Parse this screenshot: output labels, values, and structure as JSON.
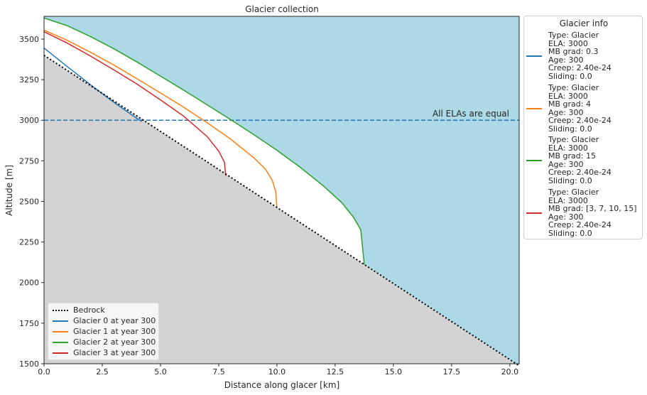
{
  "chart_data": {
    "type": "line",
    "title": "Glacier collection",
    "xlabel": "Distance along glacer [km]",
    "ylabel": "Altitude [m]",
    "xlim": [
      0,
      20.4
    ],
    "ylim": [
      1500,
      3640
    ],
    "xticks": [
      "0.0",
      "2.5",
      "5.0",
      "7.5",
      "10.0",
      "12.5",
      "15.0",
      "17.5",
      "20.0"
    ],
    "xtick_values": [
      0,
      2.5,
      5,
      7.5,
      10,
      12.5,
      15,
      17.5,
      20
    ],
    "yticks": [
      "1500",
      "1750",
      "2000",
      "2250",
      "2500",
      "2750",
      "3000",
      "3250",
      "3500"
    ],
    "ytick_values": [
      1500,
      1750,
      2000,
      2250,
      2500,
      2750,
      3000,
      3250,
      3500
    ],
    "bedrock": {
      "name": "Bedrock",
      "x": [
        0,
        20.4
      ],
      "y": [
        3400,
        1488
      ]
    },
    "ela": {
      "value": 3000,
      "annotation": "All ELAs are equal"
    },
    "series": [
      {
        "name": "Glacier 0 at year 300",
        "color": "#1f77b4",
        "x": [
          0,
          1,
          2,
          3,
          4,
          4.2
        ],
        "y": [
          3445,
          3330,
          3218,
          3110,
          3010,
          2993
        ]
      },
      {
        "name": "Glacier 1 at year 300",
        "color": "#ff7f0e",
        "x": [
          0,
          1,
          2,
          3,
          4,
          5,
          6,
          7,
          8,
          9,
          9.5,
          9.8,
          9.95,
          10.0
        ],
        "y": [
          3555,
          3492,
          3418,
          3340,
          3255,
          3168,
          3080,
          2985,
          2885,
          2770,
          2700,
          2630,
          2560,
          2462
        ]
      },
      {
        "name": "Glacier 2 at year 300",
        "color": "#2ca02c",
        "x": [
          0,
          1,
          2,
          3,
          4,
          5,
          6,
          7,
          8,
          9,
          10,
          11,
          12,
          12.8,
          13.3,
          13.6,
          13.75
        ],
        "y": [
          3630,
          3582,
          3515,
          3440,
          3358,
          3272,
          3185,
          3095,
          3005,
          2912,
          2815,
          2710,
          2595,
          2490,
          2400,
          2325,
          2110
        ]
      },
      {
        "name": "Glacier 3 at year 300",
        "color": "#d62728",
        "x": [
          0,
          1,
          2,
          3,
          4,
          5,
          6,
          7,
          7.5,
          7.75,
          7.8
        ],
        "y": [
          3545,
          3475,
          3395,
          3310,
          3222,
          3125,
          3025,
          2900,
          2810,
          2740,
          2658
        ]
      }
    ],
    "legend_inner": [
      "Bedrock",
      "Glacier 0 at year 300",
      "Glacier 1 at year 300",
      "Glacier 2 at year 300",
      "Glacier 3 at year 300"
    ],
    "legend_info_title": "Glacier info",
    "legend_info": [
      {
        "color": "#1f77b4",
        "lines": [
          "Type: Glacier",
          "ELA: 3000",
          "MB grad: 0.3",
          "Age: 300",
          "Creep: 2.40e-24",
          "Sliding: 0.0"
        ]
      },
      {
        "color": "#ff7f0e",
        "lines": [
          "Type: Glacier",
          "ELA: 3000",
          "MB grad: 4",
          "Age: 300",
          "Creep: 2.40e-24",
          "Sliding: 0.0"
        ]
      },
      {
        "color": "#2ca02c",
        "lines": [
          "Type: Glacier",
          "ELA: 3000",
          "MB grad: 15",
          "Age: 300",
          "Creep: 2.40e-24",
          "Sliding: 0.0"
        ]
      },
      {
        "color": "#d62728",
        "lines": [
          "Type: Glacier",
          "ELA: 3000",
          "MB grad: [3, 7, 10, 15]",
          "Age: 300",
          "Creep: 2.40e-24",
          "Sliding: 0.0"
        ]
      }
    ],
    "colors": {
      "sky": "#add8e6",
      "ground": "#d3d3d3",
      "ice": "#ffffff",
      "ela_line": "#1f77b4"
    },
    "grid": false
  }
}
